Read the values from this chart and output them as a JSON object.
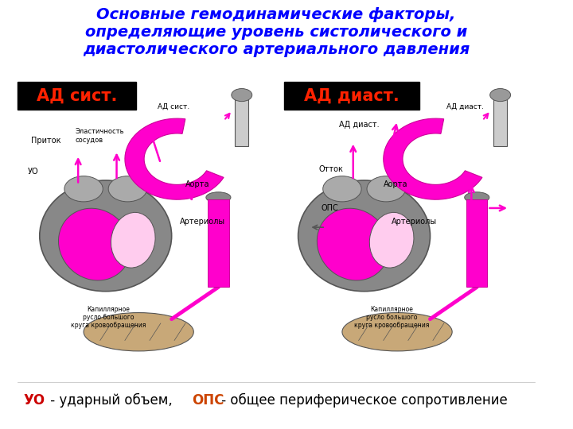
{
  "title_line1": "Основные гемодинамические факторы,",
  "title_line2": "определяющие уровень систолического и",
  "title_line3": "диастолического артериального давления",
  "title_color": "#0000FF",
  "title_fontsize": 14,
  "bg_color": "#FFFFFF",
  "label_left": "АД сист.",
  "label_right": "АД диаст.",
  "label_bg": "#000000",
  "label_fg": "#FF2200",
  "label_fontsize": 15,
  "footer_uo": "УО",
  "footer_mid": " - ударный объем, ",
  "footer_ops": "ОПС",
  "footer_end": " - общее периферическое сопротивление",
  "footer_color_uo": "#CC0000",
  "footer_color_ops": "#CC4400",
  "footer_color_plain": "#000000",
  "footer_fontsize": 12,
  "ann_color": "#000000",
  "ann_fontsize": 7,
  "magenta": "#FF00CC",
  "dark_magenta": "#CC0099",
  "dark_gray": "#555555",
  "gray": "#888888",
  "light_pink": "#FFCCEE"
}
